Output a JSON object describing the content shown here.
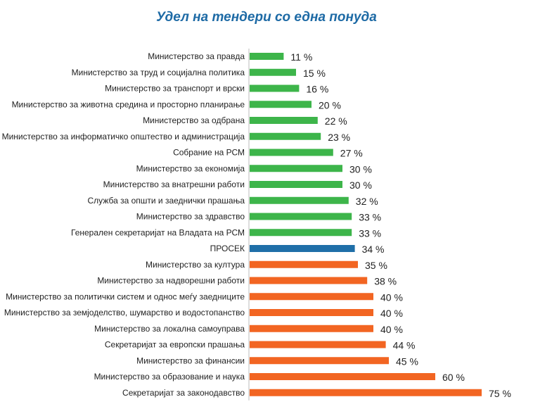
{
  "chart_data": {
    "type": "bar",
    "orientation": "horizontal",
    "title": "Удел на тендери со една понуда",
    "categories": [
      "Министерство за правда",
      "Министерство за труд и социјална политика",
      "Министерство за транспорт и врски",
      "Министерство за животна средина и просторно планирање",
      "Министерство за одбрана",
      "Министерство за информатичко општество и администрација",
      "Собрание на РСМ",
      "Министерство за економија",
      "Министерство за внатрешни работи",
      "Служба за општи и заеднички прашања",
      "Министерство за здравство",
      "Генерален секретаријат на Владата на РСМ",
      "ПРОСЕК",
      "Министерство за култура",
      "Министерство за надворешни работи",
      "Министерство за политички систем и однос меѓу заедниците",
      "Министерство за земјоделство, шумарство и водостопанство",
      "Министерство за локална самоуправа",
      "Секретаријат за европски прашања",
      "Министерство за финансии",
      "Министерство за образование и наука",
      "Секретаријат за законодавство"
    ],
    "values": [
      11,
      15,
      16,
      20,
      22,
      23,
      27,
      30,
      30,
      32,
      33,
      33,
      34,
      35,
      38,
      40,
      40,
      40,
      44,
      45,
      60,
      75
    ],
    "value_labels": [
      "11 %",
      "15 %",
      "16 %",
      "20 %",
      "22 %",
      "23 %",
      "27 %",
      "30 %",
      "30 %",
      "32 %",
      "33 %",
      "33 %",
      "34 %",
      "35 %",
      "38 %",
      "40 %",
      "40 %",
      "40 %",
      "44 %",
      "45 %",
      "60 %",
      "75 %"
    ],
    "bar_colors": [
      "#3db54a",
      "#3db54a",
      "#3db54a",
      "#3db54a",
      "#3db54a",
      "#3db54a",
      "#3db54a",
      "#3db54a",
      "#3db54a",
      "#3db54a",
      "#3db54a",
      "#3db54a",
      "#1f6fa8",
      "#f26522",
      "#f26522",
      "#f26522",
      "#f26522",
      "#f26522",
      "#f26522",
      "#f26522",
      "#f26522",
      "#f26522"
    ],
    "colors": {
      "below_average": "#3db54a",
      "average": "#1f6fa8",
      "above_average": "#f26522",
      "title": "#1d6aa5",
      "axis": "#bbbbbb"
    },
    "xlim": [
      0,
      100
    ],
    "grid": false,
    "legend": "none"
  }
}
